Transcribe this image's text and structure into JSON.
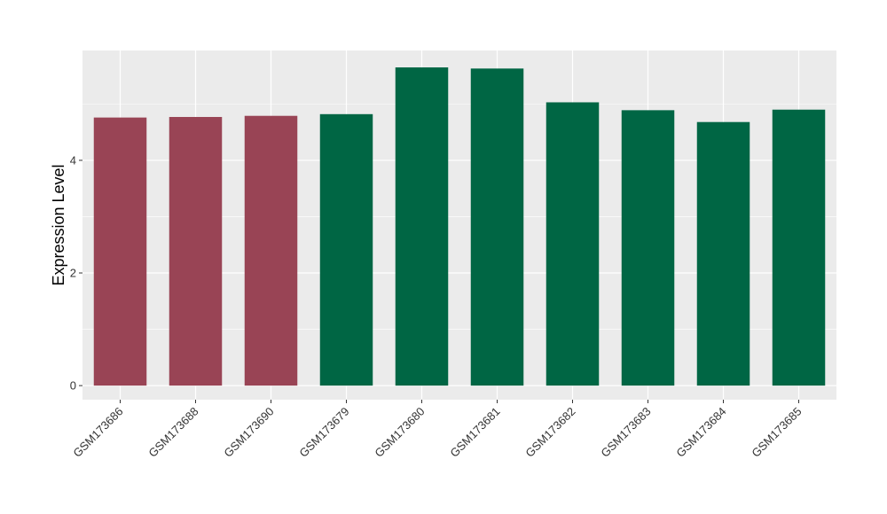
{
  "chart_data": {
    "type": "bar",
    "title": "",
    "xlabel": "",
    "ylabel": "Expression Level",
    "categories": [
      "GSM173686",
      "GSM173688",
      "GSM173690",
      "GSM173679",
      "GSM173680",
      "GSM173681",
      "GSM173682",
      "GSM173683",
      "GSM173684",
      "GSM173685"
    ],
    "values": [
      4.76,
      4.77,
      4.79,
      4.82,
      5.65,
      5.63,
      5.03,
      4.89,
      4.68,
      4.9
    ],
    "bar_colors": [
      "#994455",
      "#994455",
      "#994455",
      "#006644",
      "#006644",
      "#006644",
      "#006644",
      "#006644",
      "#006644",
      "#006644"
    ],
    "ylim": [
      -0.25,
      5.95
    ],
    "yticks": [
      0,
      2,
      4
    ],
    "grid": true,
    "panel_background": "#EBEBEB",
    "grid_color": "#FFFFFF"
  }
}
